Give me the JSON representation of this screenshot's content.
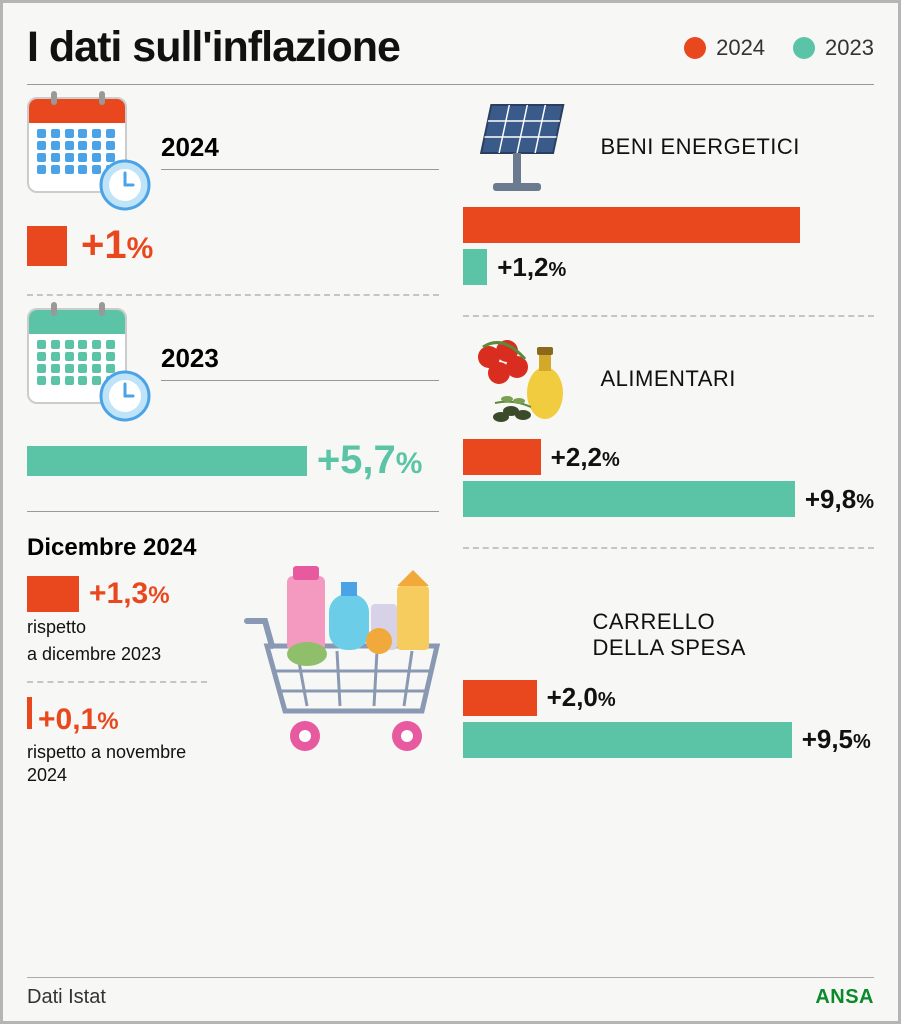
{
  "title": "I dati sull'inflazione",
  "colors": {
    "yr2024": "#e9481f",
    "yr2023": "#5cc4a6",
    "text": "#111111",
    "bg": "#f7f7f5",
    "ansa": "#0a8a2a"
  },
  "legend": [
    {
      "label": "2024",
      "color": "#e9481f"
    },
    {
      "label": "2023",
      "color": "#5cc4a6"
    }
  ],
  "left": {
    "year2024": {
      "label": "2024",
      "value": "+1",
      "pct": "%",
      "color": "#e9481f",
      "calTop": "#e9481f",
      "calDot": "#4aa3e6"
    },
    "year2023": {
      "label": "2023",
      "value": "+5,7",
      "pct": "%",
      "color": "#5cc4a6",
      "barWidthPct": 68,
      "calTop": "#5cc4a6",
      "calDot": "#5cc4a6"
    },
    "dicembre": {
      "title": "Dicembre 2024",
      "item1": {
        "value": "+1,3",
        "pct": "%",
        "sub1": "rispetto",
        "sub2": "a dicembre 2023",
        "color": "#e9481f"
      },
      "item2": {
        "value": "+0,1",
        "pct": "%",
        "sub": "rispetto a novembre 2024",
        "color": "#e9481f"
      }
    }
  },
  "right": {
    "energetici": {
      "label": "BENI ENERGETICI",
      "bars": [
        {
          "color": "#e9481f",
          "widthPct": 82,
          "value": "",
          "showLabel": false
        },
        {
          "color": "#5cc4a6",
          "widthPct": 6,
          "value": "+1,2",
          "pct": "%",
          "showLabel": true
        }
      ]
    },
    "alimentari": {
      "label": "ALIMENTARI",
      "bars": [
        {
          "color": "#e9481f",
          "widthPct": 19,
          "value": "+2,2",
          "pct": "%"
        },
        {
          "color": "#5cc4a6",
          "widthPct": 82,
          "value": "+9,8",
          "pct": "%"
        }
      ]
    },
    "carrello": {
      "label1": "CARRELLO",
      "label2": "DELLA SPESA",
      "bars": [
        {
          "color": "#e9481f",
          "widthPct": 18,
          "value": "+2,0",
          "pct": "%"
        },
        {
          "color": "#5cc4a6",
          "widthPct": 80,
          "value": "+9,5",
          "pct": "%"
        }
      ]
    }
  },
  "footer": {
    "source": "Dati Istat",
    "brand": "ANSA"
  }
}
